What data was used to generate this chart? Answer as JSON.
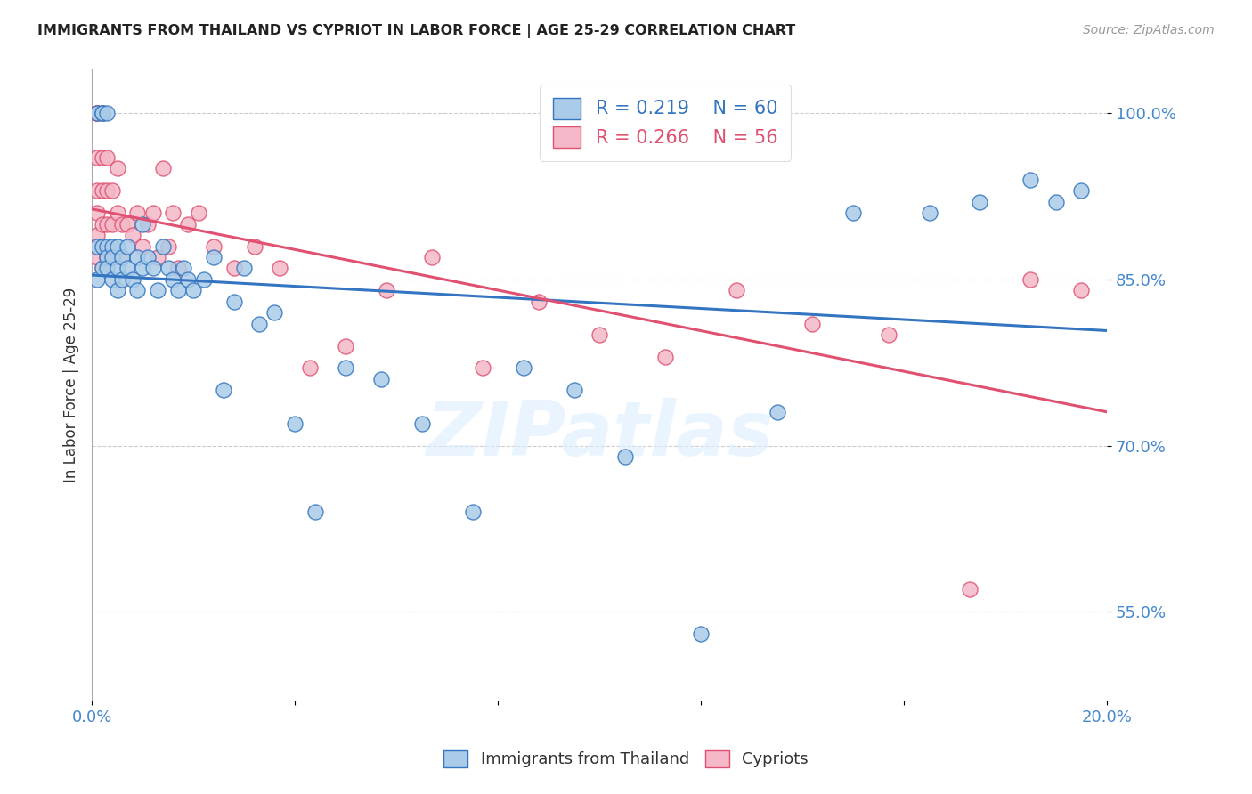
{
  "title": "IMMIGRANTS FROM THAILAND VS CYPRIOT IN LABOR FORCE | AGE 25-29 CORRELATION CHART",
  "source": "Source: ZipAtlas.com",
  "ylabel": "In Labor Force | Age 25-29",
  "xlim": [
    0.0,
    0.2
  ],
  "ylim": [
    0.47,
    1.04
  ],
  "yticks": [
    0.55,
    0.7,
    0.85,
    1.0
  ],
  "ytick_labels": [
    "55.0%",
    "70.0%",
    "85.0%",
    "100.0%"
  ],
  "xticks": [
    0.0,
    0.04,
    0.08,
    0.12,
    0.16,
    0.2
  ],
  "xtick_labels": [
    "0.0%",
    "",
    "",
    "",
    "",
    "20.0%"
  ],
  "legend_r1": "0.219",
  "legend_n1": "60",
  "legend_r2": "0.266",
  "legend_n2": "56",
  "thailand_color": "#aacce8",
  "cypriot_color": "#f4b8c8",
  "trendline_thailand_color": "#3375c0",
  "trendline_cypriot_color": "#e05070",
  "watermark": "ZIPatlas",
  "background_color": "#ffffff",
  "grid_color": "#cccccc",
  "tick_label_color": "#4488cc",
  "title_color": "#222222",
  "thailand_scatter_x": [
    0.001,
    0.001,
    0.001,
    0.002,
    0.002,
    0.002,
    0.002,
    0.003,
    0.003,
    0.003,
    0.003,
    0.004,
    0.004,
    0.004,
    0.005,
    0.005,
    0.005,
    0.006,
    0.006,
    0.007,
    0.007,
    0.008,
    0.009,
    0.009,
    0.01,
    0.01,
    0.011,
    0.012,
    0.013,
    0.014,
    0.015,
    0.016,
    0.017,
    0.018,
    0.019,
    0.02,
    0.022,
    0.024,
    0.026,
    0.028,
    0.03,
    0.033,
    0.036,
    0.04,
    0.044,
    0.05,
    0.057,
    0.065,
    0.075,
    0.085,
    0.095,
    0.105,
    0.12,
    0.135,
    0.15,
    0.165,
    0.175,
    0.185,
    0.19,
    0.195
  ],
  "thailand_scatter_y": [
    1.0,
    0.88,
    0.85,
    1.0,
    1.0,
    0.88,
    0.86,
    1.0,
    0.88,
    0.87,
    0.86,
    0.88,
    0.87,
    0.85,
    0.88,
    0.86,
    0.84,
    0.87,
    0.85,
    0.88,
    0.86,
    0.85,
    0.87,
    0.84,
    0.86,
    0.9,
    0.87,
    0.86,
    0.84,
    0.88,
    0.86,
    0.85,
    0.84,
    0.86,
    0.85,
    0.84,
    0.85,
    0.87,
    0.75,
    0.83,
    0.86,
    0.81,
    0.82,
    0.72,
    0.64,
    0.77,
    0.76,
    0.72,
    0.64,
    0.77,
    0.75,
    0.69,
    0.53,
    0.73,
    0.91,
    0.91,
    0.92,
    0.94,
    0.92,
    0.93
  ],
  "cypriot_scatter_x": [
    0.001,
    0.001,
    0.001,
    0.001,
    0.001,
    0.001,
    0.001,
    0.001,
    0.002,
    0.002,
    0.002,
    0.002,
    0.002,
    0.002,
    0.003,
    0.003,
    0.003,
    0.003,
    0.004,
    0.004,
    0.004,
    0.005,
    0.005,
    0.006,
    0.006,
    0.007,
    0.008,
    0.009,
    0.01,
    0.011,
    0.012,
    0.013,
    0.014,
    0.015,
    0.016,
    0.017,
    0.019,
    0.021,
    0.024,
    0.028,
    0.032,
    0.037,
    0.043,
    0.05,
    0.058,
    0.067,
    0.077,
    0.088,
    0.1,
    0.113,
    0.127,
    0.142,
    0.157,
    0.173,
    0.185,
    0.195
  ],
  "cypriot_scatter_y": [
    1.0,
    1.0,
    1.0,
    0.96,
    0.93,
    0.91,
    0.89,
    0.87,
    1.0,
    0.96,
    0.93,
    0.9,
    0.88,
    0.86,
    0.96,
    0.93,
    0.9,
    0.87,
    0.93,
    0.9,
    0.87,
    0.95,
    0.91,
    0.9,
    0.87,
    0.9,
    0.89,
    0.91,
    0.88,
    0.9,
    0.91,
    0.87,
    0.95,
    0.88,
    0.91,
    0.86,
    0.9,
    0.91,
    0.88,
    0.86,
    0.88,
    0.86,
    0.77,
    0.79,
    0.84,
    0.87,
    0.77,
    0.83,
    0.8,
    0.78,
    0.84,
    0.81,
    0.8,
    0.57,
    0.85,
    0.84
  ]
}
